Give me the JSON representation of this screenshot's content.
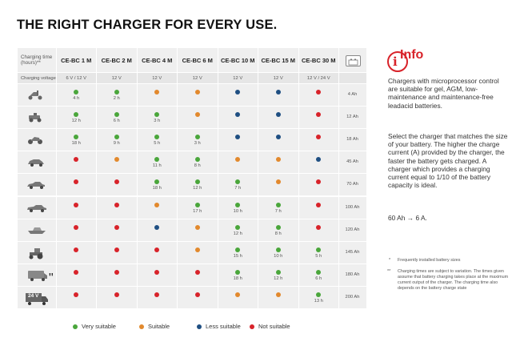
{
  "title": "THE RIGHT CHARGER FOR EVERY USE.",
  "table": {
    "header_first": "Charging time (hours)**",
    "columns": [
      "CE-BC 1 M",
      "CE-BC 2 M",
      "CE-BC 4 M",
      "CE-BC 6 M",
      "CE-BC 10 M",
      "CE-BC 15 M",
      "CE-BC 30 M"
    ],
    "voltage_label": "Charging voltage",
    "voltages": [
      "6 V / 12 V",
      "12 V",
      "12 V",
      "12 V",
      "12 V",
      "12 V",
      "12 V / 24 V"
    ],
    "truck_icon_text": "24 V",
    "rows": [
      {
        "icon": "scooter-icon",
        "cap": "4 Ah",
        "cells": [
          [
            "g",
            "4 h"
          ],
          [
            "g",
            "2 h"
          ],
          [
            "o",
            ""
          ],
          [
            "o",
            ""
          ],
          [
            "b",
            ""
          ],
          [
            "b",
            ""
          ],
          [
            "r",
            ""
          ]
        ]
      },
      {
        "icon": "lawnmower-icon",
        "cap": "12 Ah",
        "cells": [
          [
            "g",
            "12 h"
          ],
          [
            "g",
            "6 h"
          ],
          [
            "g",
            "3 h"
          ],
          [
            "o",
            ""
          ],
          [
            "b",
            ""
          ],
          [
            "b",
            ""
          ],
          [
            "r",
            ""
          ]
        ]
      },
      {
        "icon": "motorcycle-icon",
        "cap": "18 Ah",
        "cells": [
          [
            "g",
            "18 h"
          ],
          [
            "g",
            "9 h"
          ],
          [
            "g",
            "5 h"
          ],
          [
            "g",
            "3 h"
          ],
          [
            "b",
            ""
          ],
          [
            "b",
            ""
          ],
          [
            "r",
            ""
          ]
        ]
      },
      {
        "icon": "small-car-icon",
        "cap": "45 Ah",
        "cells": [
          [
            "r",
            ""
          ],
          [
            "o",
            ""
          ],
          [
            "g",
            "11 h"
          ],
          [
            "g",
            "8 h"
          ],
          [
            "o",
            ""
          ],
          [
            "o",
            ""
          ],
          [
            "b",
            ""
          ]
        ]
      },
      {
        "icon": "sedan-icon",
        "cap": "70 Ah",
        "cells": [
          [
            "r",
            ""
          ],
          [
            "r",
            ""
          ],
          [
            "g",
            "18 h"
          ],
          [
            "g",
            "12 h"
          ],
          [
            "g",
            "7 h"
          ],
          [
            "o",
            ""
          ],
          [
            "r",
            ""
          ]
        ]
      },
      {
        "icon": "limousine-icon",
        "cap": "100 Ah",
        "cells": [
          [
            "r",
            ""
          ],
          [
            "r",
            ""
          ],
          [
            "o",
            ""
          ],
          [
            "g",
            "17 h"
          ],
          [
            "g",
            "10 h"
          ],
          [
            "g",
            "7 h"
          ],
          [
            "r",
            ""
          ]
        ]
      },
      {
        "icon": "boat-icon",
        "cap": "120 Ah",
        "cells": [
          [
            "r",
            ""
          ],
          [
            "r",
            ""
          ],
          [
            "b",
            ""
          ],
          [
            "o",
            ""
          ],
          [
            "g",
            "12 h"
          ],
          [
            "g",
            "8 h"
          ],
          [
            "r",
            ""
          ]
        ]
      },
      {
        "icon": "tractor-icon",
        "cap": "145 Ah",
        "cells": [
          [
            "r",
            ""
          ],
          [
            "r",
            ""
          ],
          [
            "r",
            ""
          ],
          [
            "o",
            ""
          ],
          [
            "g",
            "15 h"
          ],
          [
            "g",
            "10 h"
          ],
          [
            "g",
            "5 h"
          ]
        ]
      },
      {
        "icon": "motorhome-icon",
        "cap": "180 Ah",
        "cells": [
          [
            "r",
            ""
          ],
          [
            "r",
            ""
          ],
          [
            "r",
            ""
          ],
          [
            "r",
            ""
          ],
          [
            "g",
            "18 h"
          ],
          [
            "g",
            "12 h"
          ],
          [
            "g",
            "6 h"
          ]
        ]
      },
      {
        "icon": "truck-icon",
        "cap": "200 Ah",
        "cells": [
          [
            "r",
            ""
          ],
          [
            "r",
            ""
          ],
          [
            "r",
            ""
          ],
          [
            "r",
            ""
          ],
          [
            "o",
            ""
          ],
          [
            "o",
            ""
          ],
          [
            "g",
            "13 h"
          ]
        ]
      }
    ]
  },
  "legend": [
    {
      "color": "g",
      "label": "Very suitable"
    },
    {
      "color": "o",
      "label": "Suitable"
    },
    {
      "color": "b",
      "label": "Less suitable"
    },
    {
      "color": "r",
      "label": "Not suitable"
    }
  ],
  "colors": {
    "g": "#4aa63b",
    "o": "#e2892d",
    "b": "#1f4f82",
    "r": "#d8232a"
  },
  "info": {
    "heading": "Info",
    "p1": "Chargers with microprocessor control are suitable for gel, AGM, low-maintenance and maintenance-free leadacid batteries.",
    "p2": "Select the charger that matches the size of your battery. The higher the charge current (A) provided by the charger, the faster the battery gets charged. A charger which provides a charging current equal to 1/10 of the battery capacity is ideal.",
    "p3": "60 Ah → 6 A.",
    "note1": "Frequently installed battery sizes",
    "note2": "Charging times are subject to variation. The times given assume that battery charging takes place at the maximum current output of the charger. The charging time also depends on the battery charge state"
  }
}
